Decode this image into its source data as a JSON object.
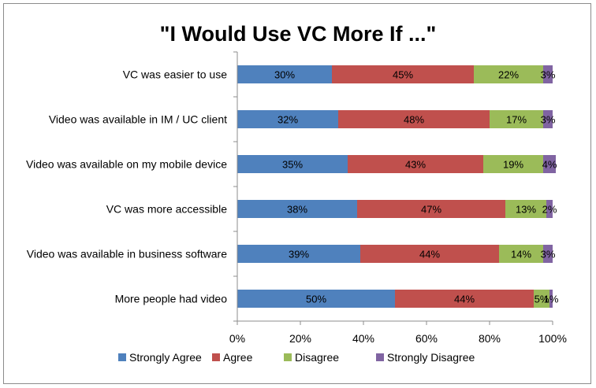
{
  "chart_data": {
    "type": "bar",
    "orientation": "horizontal",
    "stacked": true,
    "title": "\"I Would Use VC More If ...\"",
    "categories": [
      "VC was easier to use",
      "Video was available in IM / UC client",
      "Video was available on my mobile device",
      "VC was more accessible",
      "Video was available in business software",
      "More people had video"
    ],
    "series": [
      {
        "name": "Strongly Agree",
        "color": "#4f81bd",
        "values": [
          30,
          32,
          35,
          38,
          39,
          50
        ]
      },
      {
        "name": "Agree",
        "color": "#c0504d",
        "values": [
          45,
          48,
          43,
          47,
          44,
          44
        ]
      },
      {
        "name": "Disagree",
        "color": "#9bbb59",
        "values": [
          22,
          17,
          19,
          13,
          14,
          5
        ]
      },
      {
        "name": "Strongly Disagree",
        "color": "#8064a2",
        "values": [
          3,
          3,
          4,
          2,
          3,
          1
        ]
      }
    ],
    "xlim": [
      0,
      100
    ],
    "xticks": [
      "0%",
      "20%",
      "40%",
      "60%",
      "80%",
      "100%"
    ],
    "xlabel": "",
    "ylabel": "",
    "legend_position": "bottom",
    "grid": false
  }
}
